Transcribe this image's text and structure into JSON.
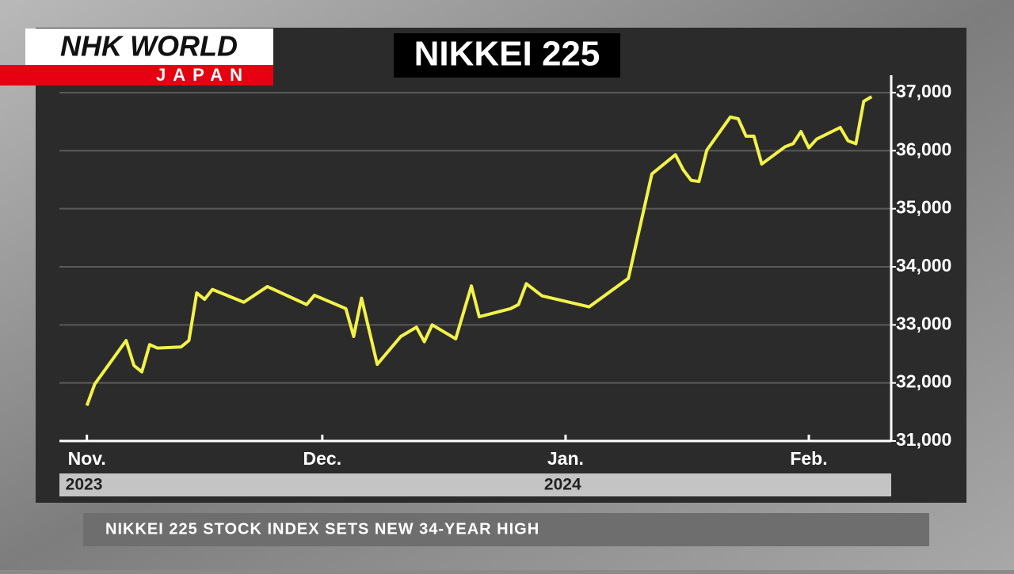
{
  "logo": {
    "line1": "NHK WORLD",
    "line2": "JAPAN"
  },
  "caption": "NIKKEI 225 STOCK INDEX SETS NEW 34-YEAR HIGH",
  "chart_data": {
    "type": "line",
    "title": "NIKKEI 225",
    "x": [
      0,
      1,
      5,
      6,
      7,
      8,
      9,
      12,
      13,
      14,
      15,
      16,
      20,
      23,
      28,
      29,
      33,
      34,
      35,
      37,
      40,
      42,
      43,
      44,
      47,
      49,
      50,
      54,
      55,
      56,
      58,
      64,
      69,
      72,
      75,
      76,
      77,
      78,
      79,
      82,
      83,
      84,
      85,
      86,
      89,
      90,
      91,
      92,
      93,
      96,
      97,
      98,
      99,
      100
    ],
    "series": [
      {
        "name": "Nikkei 225",
        "color": "#f2f24a",
        "values": [
          31610,
          31980,
          32730,
          32300,
          32190,
          32660,
          32600,
          32620,
          32730,
          33550,
          33440,
          33610,
          33390,
          33660,
          33350,
          33510,
          33280,
          32800,
          33460,
          32320,
          32800,
          32960,
          32710,
          33000,
          32760,
          33670,
          33140,
          33280,
          33350,
          33710,
          33500,
          33310,
          33800,
          35600,
          35930,
          35670,
          35490,
          35470,
          36010,
          36580,
          36550,
          36250,
          36250,
          35770,
          36070,
          36120,
          36330,
          36050,
          36200,
          36400,
          36170,
          36120,
          36850,
          36930
        ]
      }
    ],
    "xlim": [
      -3.5,
      102.5
    ],
    "xticks": [
      {
        "value": 0,
        "label": "Nov."
      },
      {
        "value": 30,
        "label": "Dec."
      },
      {
        "value": 61,
        "label": "Jan."
      },
      {
        "value": 92,
        "label": "Feb."
      }
    ],
    "years": [
      {
        "value": 0,
        "label": "2023"
      },
      {
        "value": 61,
        "label": "2024"
      }
    ],
    "ylim": [
      31000,
      37300
    ],
    "yticks": [
      {
        "value": 31000,
        "label": "31,000"
      },
      {
        "value": 32000,
        "label": "32,000"
      },
      {
        "value": 33000,
        "label": "33,000"
      },
      {
        "value": 34000,
        "label": "34,000"
      },
      {
        "value": 35000,
        "label": "35,000"
      },
      {
        "value": 36000,
        "label": "36,000"
      },
      {
        "value": 37000,
        "label": "37,000"
      }
    ],
    "grid": true
  }
}
